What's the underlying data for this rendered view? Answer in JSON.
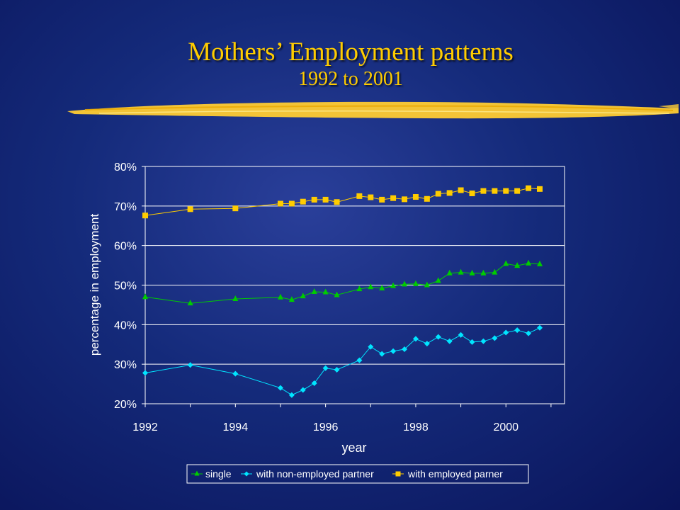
{
  "title": {
    "line1": "Mothers’ Employment patterns",
    "line2": "1992 to 2001"
  },
  "colors": {
    "title": "#ffcc00",
    "brush": "#ffcc33",
    "gridline": "#ffffff",
    "plot_border": "#ffffff"
  },
  "chart_data": {
    "type": "line",
    "xlabel": "year",
    "ylabel": "percentage in employment",
    "xlim": [
      1992,
      2001.3
    ],
    "ylim": [
      20,
      80
    ],
    "x_ticks": [
      1992,
      1994,
      1996,
      1998,
      2000
    ],
    "y_ticks": [
      20,
      30,
      40,
      50,
      60,
      70,
      80
    ],
    "y_tick_labels": [
      "20%",
      "30%",
      "40%",
      "50%",
      "60%",
      "70%",
      "80%"
    ],
    "grid": true,
    "legend": "bottom",
    "series": [
      {
        "name": "single",
        "marker": "triangle",
        "color": "#00cc00",
        "points": [
          [
            1992,
            47.0
          ],
          [
            1993,
            45.4
          ],
          [
            1994,
            46.5
          ],
          [
            1995,
            46.9
          ],
          [
            1995.25,
            46.3
          ],
          [
            1995.5,
            47.2
          ],
          [
            1995.75,
            48.3
          ],
          [
            1996,
            48.2
          ],
          [
            1996.25,
            47.5
          ],
          [
            1996.75,
            49.0
          ],
          [
            1997,
            49.5
          ],
          [
            1997.25,
            49.2
          ],
          [
            1997.5,
            49.8
          ],
          [
            1997.75,
            50.2
          ],
          [
            1998,
            50.3
          ],
          [
            1998.25,
            50.0
          ],
          [
            1998.5,
            51.1
          ],
          [
            1998.75,
            53.0
          ],
          [
            1999,
            53.2
          ],
          [
            1999.25,
            53.0
          ],
          [
            1999.5,
            53.0
          ],
          [
            1999.75,
            53.2
          ],
          [
            2000,
            55.4
          ],
          [
            2000.25,
            54.9
          ],
          [
            2000.5,
            55.5
          ],
          [
            2000.75,
            55.3
          ]
        ]
      },
      {
        "name": "with non-employed partner",
        "marker": "diamond",
        "color": "#00e5ff",
        "points": [
          [
            1992,
            27.8
          ],
          [
            1993,
            29.8
          ],
          [
            1994,
            27.6
          ],
          [
            1995,
            24.0
          ],
          [
            1995.25,
            22.2
          ],
          [
            1995.5,
            23.5
          ],
          [
            1995.75,
            25.2
          ],
          [
            1996,
            29.0
          ],
          [
            1996.25,
            28.6
          ],
          [
            1996.75,
            31.0
          ],
          [
            1997,
            34.4
          ],
          [
            1997.25,
            32.6
          ],
          [
            1997.5,
            33.3
          ],
          [
            1997.75,
            33.8
          ],
          [
            1998,
            36.4
          ],
          [
            1998.25,
            35.2
          ],
          [
            1998.5,
            36.9
          ],
          [
            1998.75,
            35.8
          ],
          [
            1999,
            37.4
          ],
          [
            1999.25,
            35.6
          ],
          [
            1999.5,
            35.8
          ],
          [
            1999.75,
            36.6
          ],
          [
            2000,
            38.0
          ],
          [
            2000.25,
            38.6
          ],
          [
            2000.5,
            37.8
          ],
          [
            2000.75,
            39.2
          ]
        ]
      },
      {
        "name": "with employed parner",
        "marker": "square",
        "color": "#ffcc00",
        "points": [
          [
            1992,
            67.6
          ],
          [
            1993,
            69.2
          ],
          [
            1994,
            69.4
          ],
          [
            1995,
            70.6
          ],
          [
            1995.25,
            70.6
          ],
          [
            1995.5,
            71.1
          ],
          [
            1995.75,
            71.6
          ],
          [
            1996,
            71.6
          ],
          [
            1996.25,
            71.0
          ],
          [
            1996.75,
            72.5
          ],
          [
            1997,
            72.2
          ],
          [
            1997.25,
            71.6
          ],
          [
            1997.5,
            72.0
          ],
          [
            1997.75,
            71.7
          ],
          [
            1998,
            72.3
          ],
          [
            1998.25,
            71.8
          ],
          [
            1998.5,
            73.1
          ],
          [
            1998.75,
            73.3
          ],
          [
            1999,
            74.0
          ],
          [
            1999.25,
            73.2
          ],
          [
            1999.5,
            73.8
          ],
          [
            1999.75,
            73.8
          ],
          [
            2000,
            73.8
          ],
          [
            2000.25,
            73.8
          ],
          [
            2000.5,
            74.5
          ],
          [
            2000.75,
            74.3
          ]
        ]
      }
    ]
  }
}
